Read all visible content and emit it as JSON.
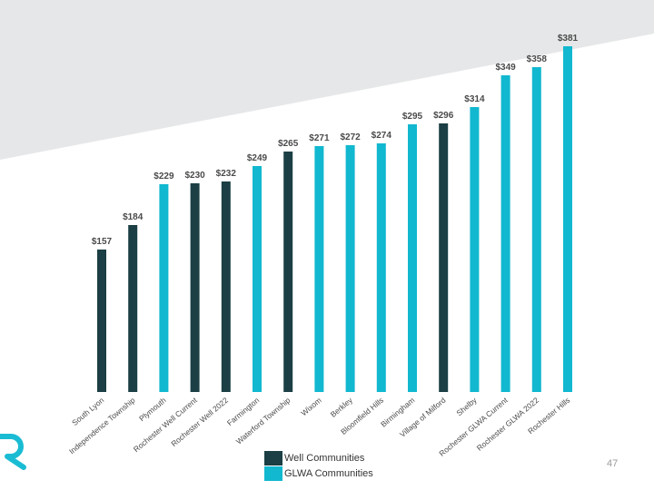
{
  "slide": {
    "page_number": "47",
    "logo_icon": "r-logo-icon",
    "banner_color": "#e6e7e8",
    "logo_color": "#1abcd4"
  },
  "legend": {
    "items": [
      {
        "label": "Well Communities",
        "color": "#1b3f44"
      },
      {
        "label": "GLWA Communities",
        "color": "#11b8cf"
      }
    ]
  },
  "chart_data": {
    "type": "bar",
    "title": "",
    "xlabel": "",
    "ylabel": "",
    "ylim": [
      0,
      400
    ],
    "grid": false,
    "legend_position": "bottom-center",
    "value_prefix": "$",
    "categories": [
      "South Lyon",
      "Independence Township",
      "Plymouth",
      "Rochester Well Current",
      "Rochester Well 2022",
      "Farmington",
      "Waterford Township",
      "Wixom",
      "Berkley",
      "Bloomfield Hills",
      "Birmingham",
      "Village of Milford",
      "Shelby",
      "Rochester GLWA Current",
      "Rochester GLWA 2022",
      "Rochester Hills"
    ],
    "values": [
      157,
      184,
      229,
      230,
      232,
      249,
      265,
      271,
      272,
      274,
      295,
      296,
      314,
      349,
      358,
      381
    ],
    "labels": [
      "$157",
      "$184",
      "$229",
      "$230",
      "$232",
      "$249",
      "$265",
      "$271",
      "$272",
      "$274",
      "$295",
      "$296",
      "$314",
      "$349",
      "$358",
      "$381"
    ],
    "series_of_bar": [
      "Well Communities",
      "Well Communities",
      "GLWA Communities",
      "Well Communities",
      "Well Communities",
      "GLWA Communities",
      "Well Communities",
      "GLWA Communities",
      "GLWA Communities",
      "GLWA Communities",
      "GLWA Communities",
      "Well Communities",
      "GLWA Communities",
      "GLWA Communities",
      "GLWA Communities",
      "GLWA Communities"
    ]
  }
}
